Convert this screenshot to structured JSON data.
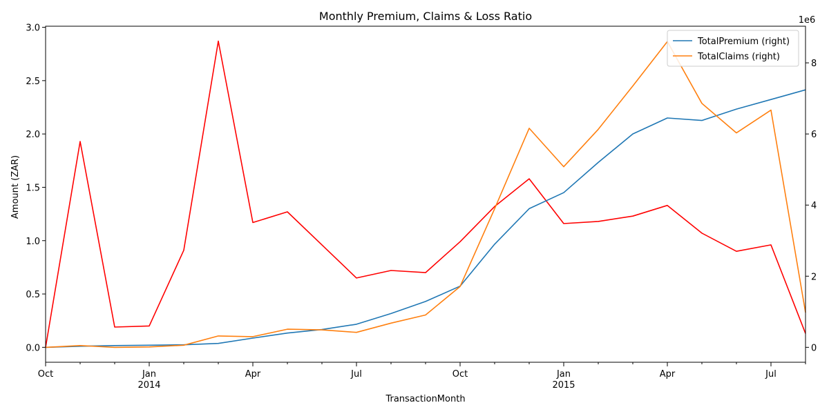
{
  "chart_data": {
    "type": "line",
    "title": "Monthly Premium, Claims & Loss Ratio",
    "xlabel": "TransactionMonth",
    "ylabel": "Amount (ZAR)",
    "y2_offset_label": "1e6",
    "x": [
      "2013-10",
      "2013-11",
      "2013-12",
      "2014-01",
      "2014-02",
      "2014-03",
      "2014-04",
      "2014-05",
      "2014-06",
      "2014-07",
      "2014-08",
      "2014-09",
      "2014-10",
      "2014-11",
      "2014-12",
      "2015-01",
      "2015-02",
      "2015-03",
      "2015-04",
      "2015-05",
      "2015-06",
      "2015-07",
      "2015-08"
    ],
    "x_ticks": [
      {
        "index": 0,
        "label": "Oct"
      },
      {
        "index": 3,
        "label": "Jan",
        "year": "2014"
      },
      {
        "index": 6,
        "label": "Apr"
      },
      {
        "index": 9,
        "label": "Jul"
      },
      {
        "index": 12,
        "label": "Oct"
      },
      {
        "index": 15,
        "label": "Jan",
        "year": "2015"
      },
      {
        "index": 18,
        "label": "Apr"
      },
      {
        "index": 21,
        "label": "Jul"
      }
    ],
    "ylim": [
      -0.14,
      3.01
    ],
    "y_ticks": [
      "0.0",
      "0.5",
      "1.0",
      "1.5",
      "2.0",
      "2.5",
      "3.0"
    ],
    "y2lim": [
      -0.42,
      9.03
    ],
    "y2_ticks": [
      "0",
      "2",
      "4",
      "6",
      "8"
    ],
    "series": [
      {
        "name": "",
        "axis": "left",
        "color": "#ff0000",
        "values": [
          0.0,
          1.93,
          0.19,
          0.2,
          0.91,
          2.87,
          1.17,
          1.27,
          0.96,
          0.65,
          0.72,
          0.7,
          0.99,
          1.32,
          1.58,
          1.16,
          1.18,
          1.23,
          1.33,
          1.07,
          0.9,
          0.96,
          0.13
        ]
      },
      {
        "name": "TotalPremium (right)",
        "axis": "right",
        "color": "#1f77b4",
        "values": [
          0.0,
          0.03,
          0.05,
          0.06,
          0.07,
          0.11,
          0.26,
          0.4,
          0.5,
          0.65,
          0.95,
          1.29,
          1.72,
          2.9,
          3.9,
          4.35,
          5.2,
          6.0,
          6.45,
          6.38,
          6.7,
          6.97,
          7.24
        ]
      },
      {
        "name": "TotalClaims (right)",
        "axis": "right",
        "color": "#ff7f0e",
        "values": [
          0.0,
          0.05,
          0.0,
          0.01,
          0.06,
          0.32,
          0.3,
          0.51,
          0.49,
          0.42,
          0.68,
          0.91,
          1.71,
          3.9,
          6.16,
          5.08,
          6.13,
          7.35,
          8.6,
          6.86,
          6.03,
          6.67,
          0.98
        ]
      }
    ],
    "legend": {
      "placement": "top-right",
      "entries": [
        "TotalPremium (right)",
        "TotalClaims (right)"
      ]
    }
  }
}
